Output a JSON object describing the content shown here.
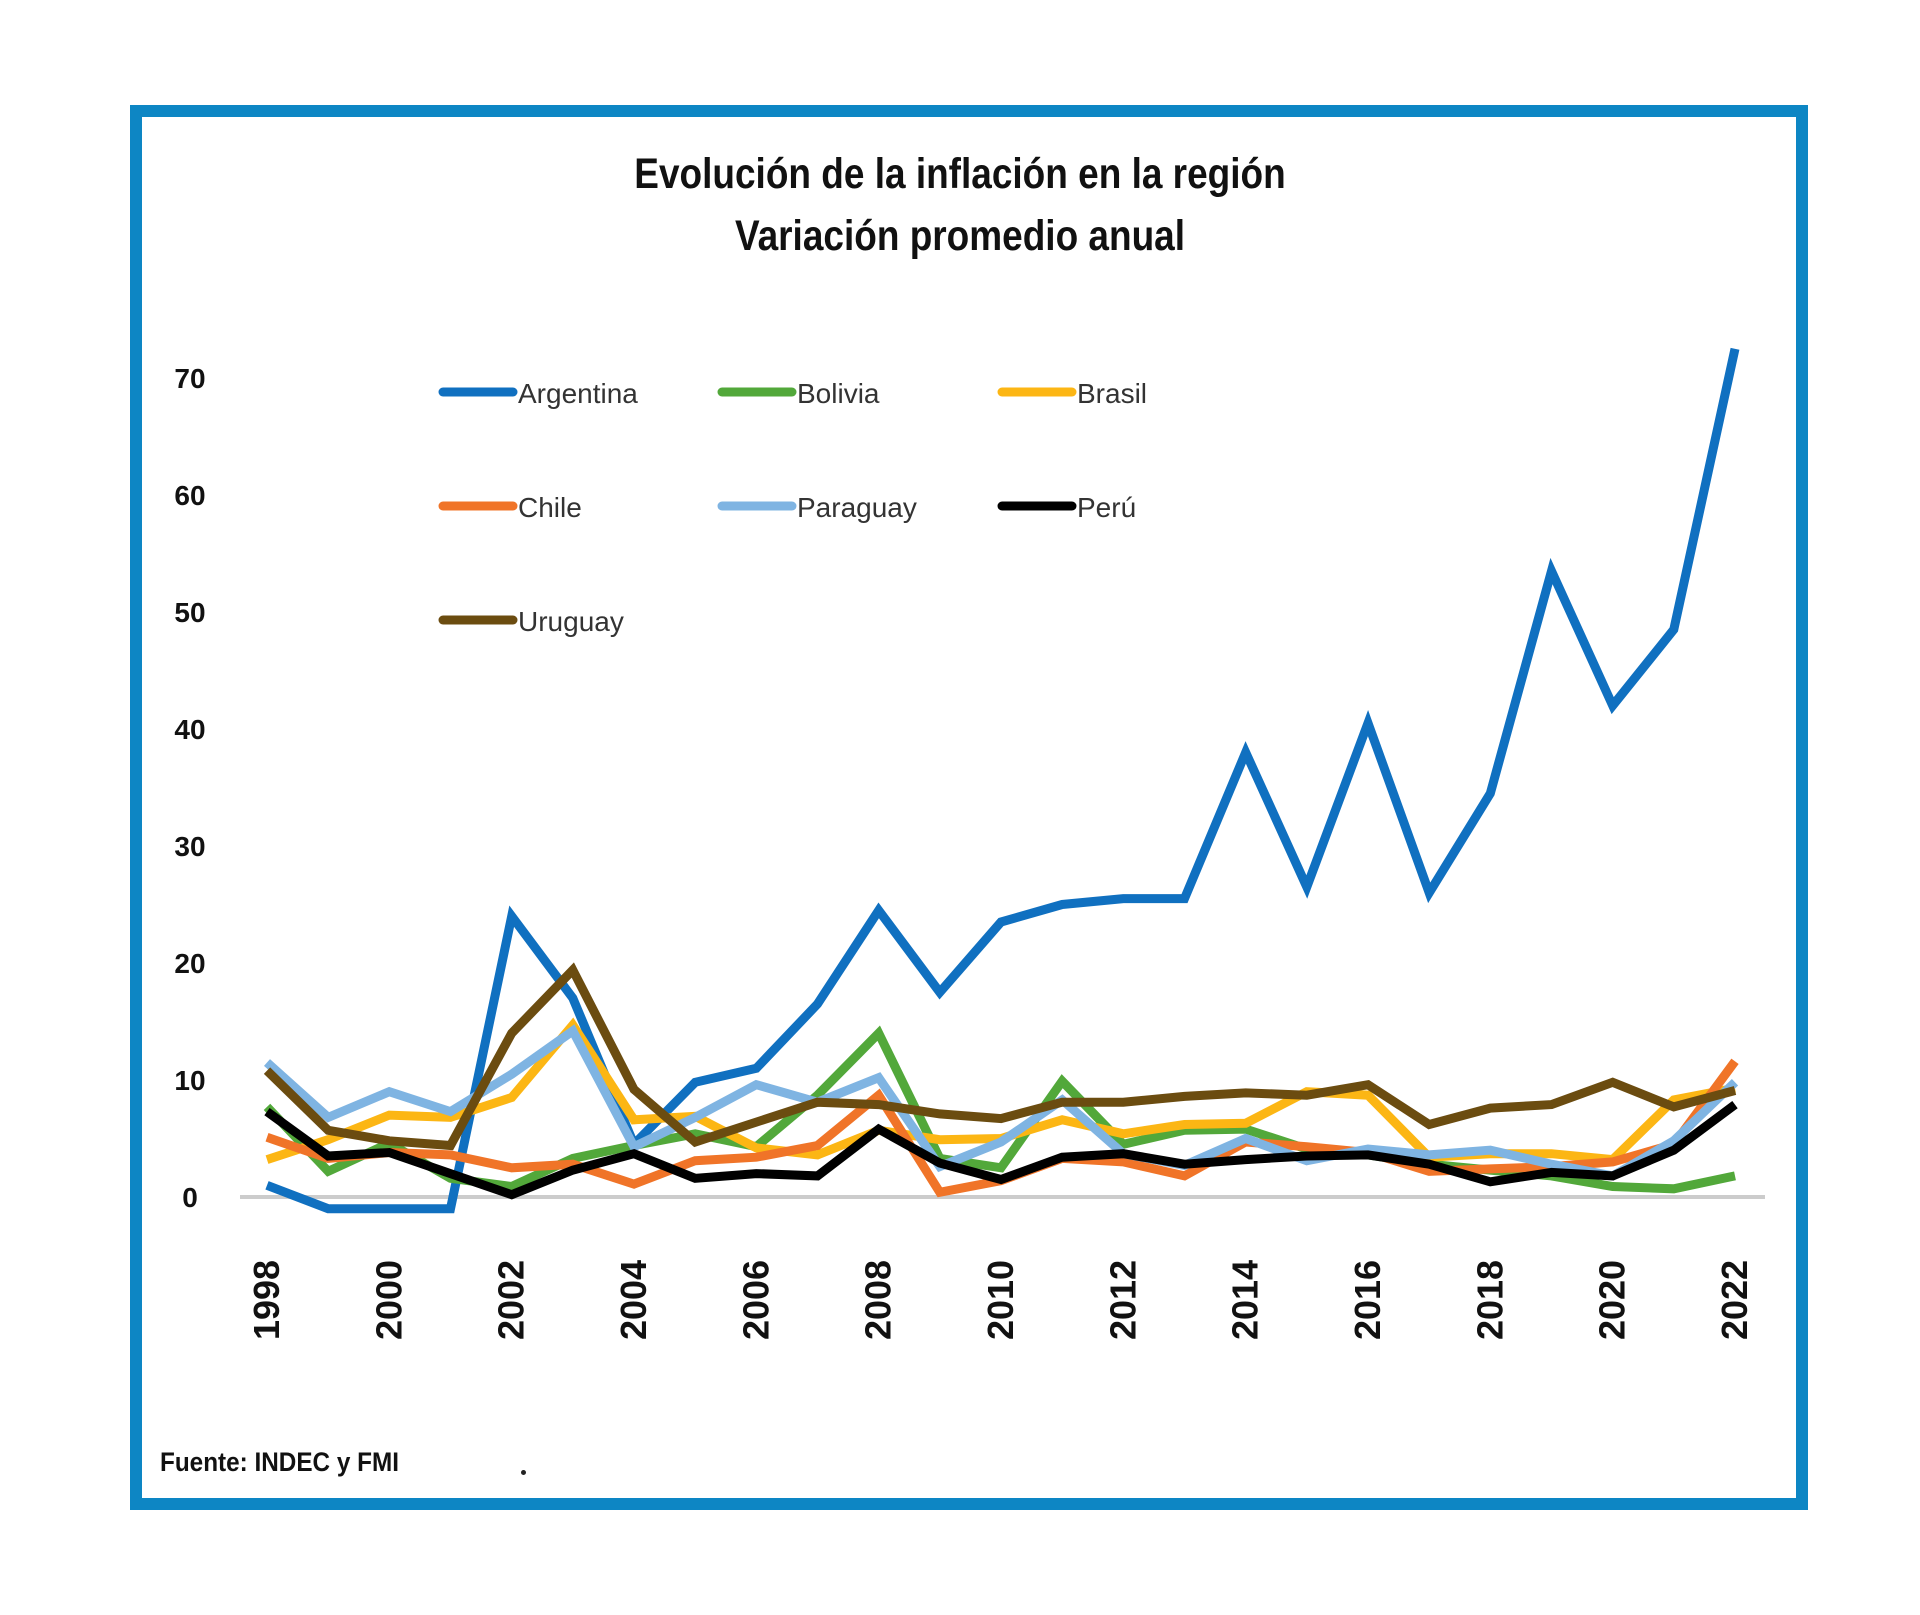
{
  "chart_data": {
    "type": "line",
    "title": "Evolución de la inflación en la región",
    "subtitle": "Variación promedio anual",
    "xlabel": "",
    "ylabel": "",
    "ylim": [
      0,
      70
    ],
    "y_ticks": [
      "0",
      "10",
      "20",
      "30",
      "40",
      "50",
      "60",
      "70"
    ],
    "x_tick_labels": [
      "1998",
      "2000",
      "2002",
      "2004",
      "2006",
      "2008",
      "2010",
      "2012",
      "2014",
      "2016",
      "2018",
      "2020",
      "2022"
    ],
    "grid": false,
    "legend_placement": "top-left inside plot",
    "x": [
      1998,
      1999,
      2000,
      2001,
      2002,
      2003,
      2004,
      2005,
      2006,
      2007,
      2008,
      2009,
      2010,
      2011,
      2012,
      2013,
      2014,
      2015,
      2016,
      2017,
      2018,
      2019,
      2020,
      2021,
      2022
    ],
    "series": [
      {
        "name": "Argentina",
        "color": "#1070c0",
        "values": [
          1.0,
          -1.0,
          -1.0,
          -1.0,
          24.0,
          17.0,
          4.5,
          9.8,
          11.0,
          16.5,
          24.5,
          17.5,
          23.5,
          25.0,
          25.5,
          25.5,
          38.0,
          26.5,
          40.5,
          26.0,
          34.5,
          53.5,
          42.0,
          48.5,
          72.5
        ]
      },
      {
        "name": "Bolivia",
        "color": "#52a83a",
        "values": [
          7.7,
          2.2,
          4.6,
          1.6,
          0.9,
          3.3,
          4.4,
          5.4,
          4.3,
          8.7,
          14.0,
          3.3,
          2.5,
          9.9,
          4.5,
          5.7,
          5.8,
          4.1,
          3.6,
          2.8,
          2.3,
          1.8,
          0.9,
          0.7,
          1.8
        ]
      },
      {
        "name": "Brasil",
        "color": "#fcb614",
        "values": [
          3.2,
          4.9,
          7.0,
          6.8,
          8.5,
          14.7,
          6.6,
          6.9,
          4.2,
          3.6,
          5.7,
          4.9,
          5.0,
          6.6,
          5.4,
          6.2,
          6.3,
          9.0,
          8.7,
          3.4,
          3.7,
          3.7,
          3.2,
          8.3,
          9.3
        ]
      },
      {
        "name": "Chile",
        "color": "#f07428",
        "values": [
          5.1,
          3.3,
          3.8,
          3.6,
          2.5,
          2.8,
          1.1,
          3.1,
          3.4,
          4.4,
          8.7,
          0.4,
          1.4,
          3.3,
          3.0,
          1.8,
          4.7,
          4.3,
          3.8,
          2.2,
          2.4,
          2.6,
          3.0,
          4.5,
          11.6
        ]
      },
      {
        "name": "Paraguay",
        "color": "#7fb4e2",
        "values": [
          11.5,
          6.8,
          9.0,
          7.3,
          10.5,
          14.2,
          4.3,
          6.8,
          9.6,
          8.1,
          10.2,
          2.6,
          4.7,
          8.3,
          3.7,
          2.7,
          5.0,
          3.1,
          4.1,
          3.6,
          4.0,
          2.8,
          1.8,
          4.8,
          9.8
        ]
      },
      {
        "name": "Perú",
        "color": "#000000",
        "values": [
          7.3,
          3.5,
          3.8,
          2.0,
          0.2,
          2.3,
          3.7,
          1.6,
          2.0,
          1.8,
          5.8,
          2.9,
          1.5,
          3.4,
          3.7,
          2.8,
          3.2,
          3.5,
          3.6,
          2.8,
          1.3,
          2.1,
          1.8,
          4.0,
          7.9
        ]
      },
      {
        "name": "Uruguay",
        "color": "#6b4c10",
        "values": [
          10.8,
          5.7,
          4.8,
          4.4,
          14.0,
          19.4,
          9.2,
          4.7,
          6.4,
          8.1,
          7.9,
          7.1,
          6.7,
          8.1,
          8.1,
          8.6,
          8.9,
          8.7,
          9.6,
          6.2,
          7.6,
          7.9,
          9.8,
          7.7,
          9.1
        ]
      }
    ]
  },
  "footer": {
    "source": "Fuente: INDEC y FMI"
  },
  "colors": {
    "frame_border": "#0d86c4",
    "zero_line": "#cccccc"
  }
}
